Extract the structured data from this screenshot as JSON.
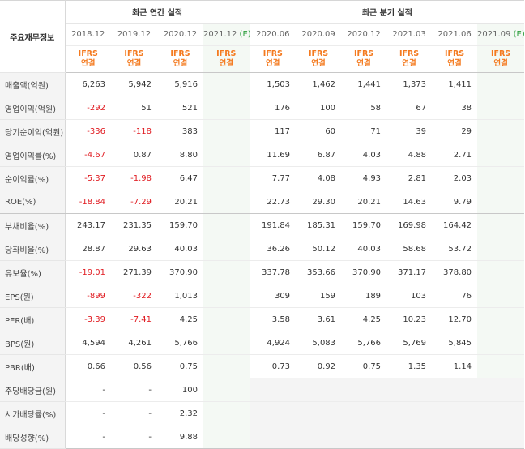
{
  "header": {
    "label_title": "주요재무정보",
    "annual_group": "최근 연간 실적",
    "quarter_group": "최근 분기 실적",
    "ifrs_line1": "IFRS",
    "ifrs_line2": "연결",
    "estimate_mark": "(E)",
    "annual_periods": [
      "2018.12",
      "2019.12",
      "2020.12",
      "2021.12"
    ],
    "quarter_periods": [
      "2020.06",
      "2020.09",
      "2020.12",
      "2021.03",
      "2021.06",
      "2021.09"
    ]
  },
  "rows": [
    {
      "label": "매출액(억원)",
      "annual": [
        "6,263",
        "5,942",
        "5,916",
        ""
      ],
      "quarter": [
        "1,503",
        "1,462",
        "1,441",
        "1,373",
        "1,411",
        ""
      ]
    },
    {
      "label": "영업이익(억원)",
      "annual": [
        "-292",
        "51",
        "521",
        ""
      ],
      "quarter": [
        "176",
        "100",
        "58",
        "67",
        "38",
        ""
      ]
    },
    {
      "label": "당기순이익(억원)",
      "annual": [
        "-336",
        "-118",
        "383",
        ""
      ],
      "quarter": [
        "117",
        "60",
        "71",
        "39",
        "29",
        ""
      ]
    },
    {
      "label": "영업이익률(%)",
      "annual": [
        "-4.67",
        "0.87",
        "8.80",
        ""
      ],
      "quarter": [
        "11.69",
        "6.87",
        "4.03",
        "4.88",
        "2.71",
        ""
      ]
    },
    {
      "label": "순이익률(%)",
      "annual": [
        "-5.37",
        "-1.98",
        "6.47",
        ""
      ],
      "quarter": [
        "7.77",
        "4.08",
        "4.93",
        "2.81",
        "2.03",
        ""
      ]
    },
    {
      "label": "ROE(%)",
      "annual": [
        "-18.84",
        "-7.29",
        "20.21",
        ""
      ],
      "quarter": [
        "22.73",
        "29.30",
        "20.21",
        "14.63",
        "9.79",
        ""
      ]
    },
    {
      "label": "부채비율(%)",
      "annual": [
        "243.17",
        "231.35",
        "159.70",
        ""
      ],
      "quarter": [
        "191.84",
        "185.31",
        "159.70",
        "169.98",
        "164.42",
        ""
      ]
    },
    {
      "label": "당좌비율(%)",
      "annual": [
        "28.87",
        "29.63",
        "40.03",
        ""
      ],
      "quarter": [
        "36.26",
        "50.12",
        "40.03",
        "58.68",
        "53.72",
        ""
      ]
    },
    {
      "label": "유보율(%)",
      "annual": [
        "-19.01",
        "271.39",
        "370.90",
        ""
      ],
      "quarter": [
        "337.78",
        "353.66",
        "370.90",
        "371.17",
        "378.80",
        ""
      ]
    },
    {
      "label": "EPS(원)",
      "annual": [
        "-899",
        "-322",
        "1,013",
        ""
      ],
      "quarter": [
        "309",
        "159",
        "189",
        "103",
        "76",
        ""
      ]
    },
    {
      "label": "PER(배)",
      "annual": [
        "-3.39",
        "-7.41",
        "4.25",
        ""
      ],
      "quarter": [
        "3.58",
        "3.61",
        "4.25",
        "10.23",
        "12.70",
        ""
      ]
    },
    {
      "label": "BPS(원)",
      "annual": [
        "4,594",
        "4,261",
        "5,766",
        ""
      ],
      "quarter": [
        "4,924",
        "5,083",
        "5,766",
        "5,769",
        "5,845",
        ""
      ]
    },
    {
      "label": "PBR(배)",
      "annual": [
        "0.66",
        "0.56",
        "0.75",
        ""
      ],
      "quarter": [
        "0.73",
        "0.92",
        "0.75",
        "1.35",
        "1.14",
        ""
      ]
    },
    {
      "label": "주당배당금(원)",
      "annual": [
        "-",
        "-",
        "100",
        ""
      ],
      "quarter": [
        "",
        "",
        "",
        "",
        "",
        ""
      ]
    },
    {
      "label": "시가배당률(%)",
      "annual": [
        "-",
        "-",
        "2.32",
        ""
      ],
      "quarter": [
        "",
        "",
        "",
        "",
        "",
        ""
      ]
    },
    {
      "label": "배당성향(%)",
      "annual": [
        "-",
        "-",
        "9.88",
        ""
      ],
      "quarter": [
        "",
        "",
        "",
        "",
        "",
        ""
      ]
    }
  ],
  "colors": {
    "negative": "#e0191f",
    "ifrs": "#f47a1f",
    "estimate_mark": "#2a9d3a",
    "estimate_bg": "#f4f9f4",
    "label_bg": "#f4f4f4"
  }
}
